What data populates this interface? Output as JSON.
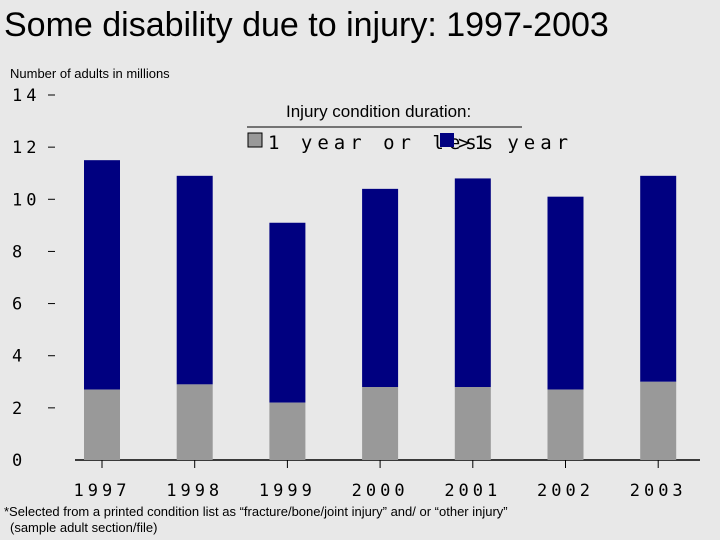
{
  "title": "Some disability due to injury: 1997-2003",
  "ylabel": "Number of adults in millions",
  "footnote": {
    "line1": "*Selected from a printed condition list as “fracture/bone/joint injury” and/ or “other injury”",
    "line2": "(sample adult section/file)"
  },
  "colors": {
    "background": "#e8e8e8",
    "short": "#999999",
    "long": "#000080"
  },
  "chart_data": {
    "type": "bar",
    "stacked": true,
    "title": "Some disability due to injury: 1997-2003",
    "ylabel": "Number of adults in millions",
    "categories": [
      "1997",
      "1998",
      "1999",
      "2000",
      "2001",
      "2002",
      "2003"
    ],
    "series": [
      {
        "name": "1 year or less",
        "values": [
          2.7,
          2.9,
          2.2,
          2.8,
          2.8,
          2.7,
          3.0
        ]
      },
      {
        "name": ">1 year",
        "values": [
          8.8,
          8.0,
          6.9,
          7.6,
          8.0,
          7.4,
          7.9
        ]
      }
    ],
    "ylim": [
      0,
      14
    ],
    "yticks": [
      "0",
      "2",
      "4",
      "6",
      "8",
      "10",
      "12",
      "14"
    ],
    "legend": {
      "title": "Injury condition duration:",
      "placement": "top-right"
    },
    "grid": false
  }
}
